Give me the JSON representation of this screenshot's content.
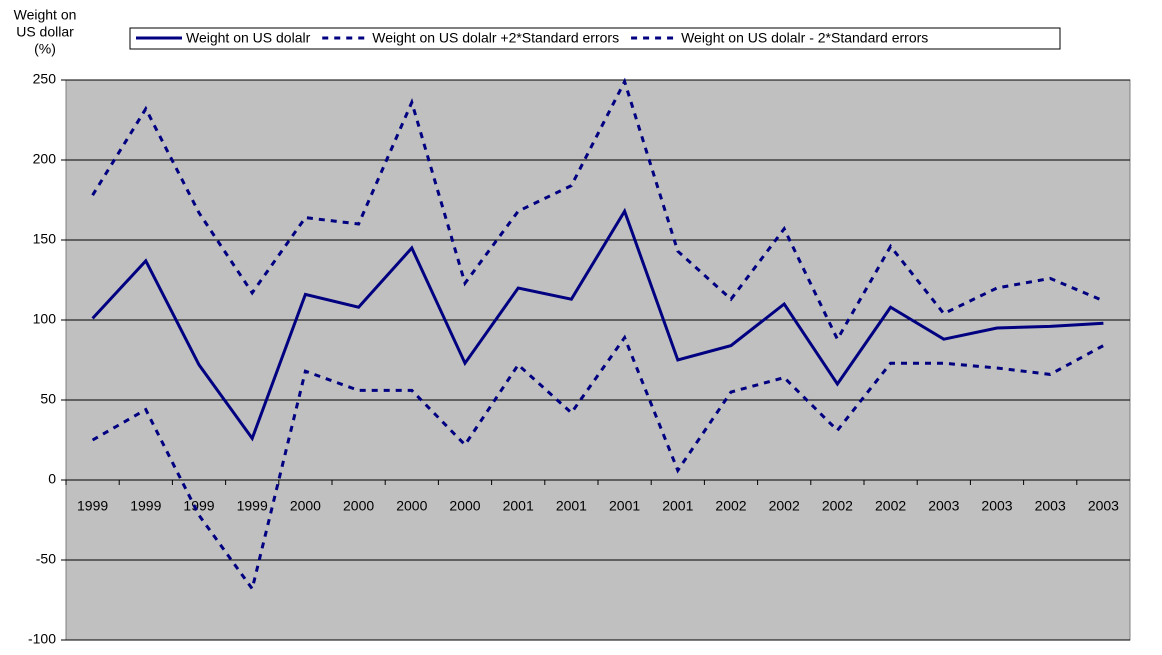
{
  "chart_data": {
    "type": "line",
    "ylabel": [
      "Weight on",
      "US dollar",
      "(%)"
    ],
    "categories": [
      "1999",
      "1999",
      "1999",
      "1999",
      "2000",
      "2000",
      "2000",
      "2000",
      "2001",
      "2001",
      "2001",
      "2001",
      "2002",
      "2002",
      "2002",
      "2002",
      "2003",
      "2003",
      "2003",
      "2003"
    ],
    "series": [
      {
        "name": "Weight on US dolalr",
        "color": "#000080",
        "style": "solid",
        "values": [
          101,
          137,
          72,
          26,
          116,
          108,
          145,
          73,
          120,
          113,
          168,
          75,
          84,
          110,
          60,
          108,
          88,
          95,
          96,
          98
        ]
      },
      {
        "name": "Weight on US dolalr +2*Standard errors",
        "color": "#000080",
        "style": "dashed",
        "values": [
          178,
          232,
          167,
          117,
          164,
          160,
          236,
          123,
          168,
          184,
          249,
          143,
          113,
          157,
          88,
          146,
          104,
          120,
          126,
          112
        ]
      },
      {
        "name": "Weight on US dolalr - 2*Standard errors",
        "color": "#000080",
        "style": "dashed",
        "values": [
          25,
          44,
          -22,
          -68,
          68,
          56,
          56,
          22,
          72,
          42,
          89,
          6,
          55,
          64,
          31,
          73,
          73,
          70,
          66,
          84
        ]
      }
    ],
    "ylim": [
      -100,
      250
    ],
    "yticks": [
      -100,
      -50,
      0,
      50,
      100,
      150,
      200,
      250
    ],
    "grid": true,
    "plot_background": "#c0c0c0",
    "legend": "top"
  }
}
